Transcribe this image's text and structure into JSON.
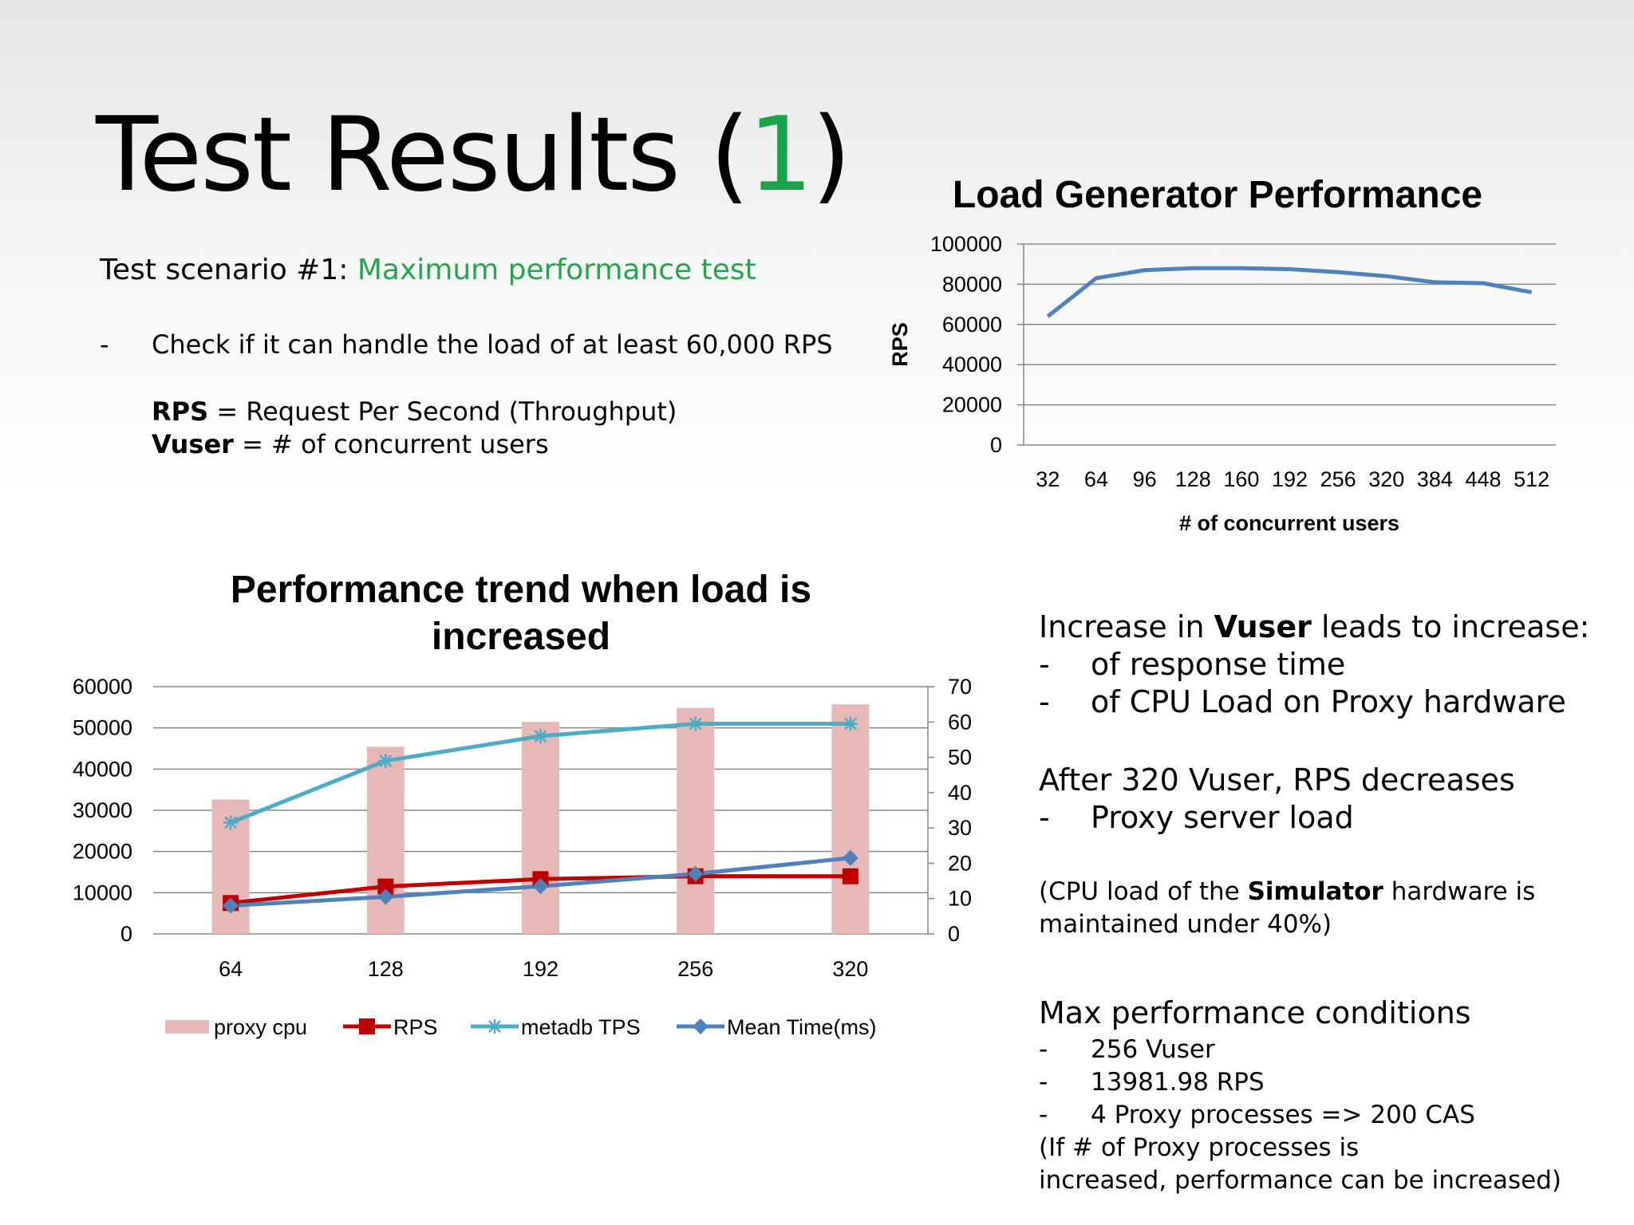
{
  "slide": {
    "title_main": "Test Results (",
    "title_num": "1",
    "title_close": ")",
    "scenario_prefix": "Test scenario #1: ",
    "scenario_name": "Maximum performance test",
    "bullet_dash": "-",
    "bullet_text": "Check if it can handle the load of at least 60,000 RPS",
    "def_rps_term": "RPS",
    "def_rps_text": " = Request Per Second (Throughput)",
    "def_vuser_term": "Vuser",
    "def_vuser_text": " = # of concurrent users",
    "notes": {
      "inc_prefix": "Increase in ",
      "inc_bold": "Vuser",
      "inc_suffix": " leads to increase:",
      "inc_item1": "of response time",
      "inc_item2": "of CPU Load on Proxy hardware",
      "after_line": "After 320 Vuser, RPS decreases",
      "after_item1": "Proxy server load",
      "cpu_prefix": "(CPU load  of the ",
      "cpu_bold": "Simulator",
      "cpu_suffix": " hardware is",
      "cpu_line2": "maintained under 40%)",
      "max_title": "Max performance conditions",
      "max_item1": "256 Vuser",
      "max_item2": "13981.98 RPS",
      "max_item3": "4 Proxy processes => 200 CAS",
      "max_line4": "(If # of Proxy processes is",
      "max_line5": "increased, performance can be increased)",
      "dash": "-"
    }
  },
  "chart_data": [
    {
      "type": "line",
      "title": "Load Generator Performance",
      "xlabel": "# of concurrent users",
      "ylabel": "RPS",
      "categories": [
        "32",
        "64",
        "96",
        "128",
        "160",
        "192",
        "256",
        "320",
        "384",
        "448",
        "512"
      ],
      "series": [
        {
          "values": [
            64000,
            83000,
            87000,
            88000,
            88000,
            87500,
            86000,
            84000,
            81000,
            80500,
            76000
          ]
        }
      ],
      "ylim": [
        0,
        100000
      ],
      "yticks": [
        "0",
        "20000",
        "40000",
        "60000",
        "80000",
        "100000"
      ],
      "grid": true,
      "color": "#4f81bd"
    },
    {
      "type": "bar",
      "title_line1": "Performance trend when load is",
      "title_line2": "increased",
      "categories": [
        "64",
        "128",
        "192",
        "256",
        "320"
      ],
      "ylim_left": [
        0,
        60000
      ],
      "ylim_right": [
        0,
        70
      ],
      "yticks_left": [
        "0",
        "10000",
        "20000",
        "30000",
        "40000",
        "50000",
        "60000"
      ],
      "yticks_right": [
        "0",
        "10",
        "20",
        "30",
        "40",
        "50",
        "60",
        "70"
      ],
      "series": [
        {
          "name": "proxy cpu",
          "kind": "bar",
          "axis": "right",
          "color": "#e6b9b8",
          "values": [
            38,
            53,
            60,
            64,
            65
          ]
        },
        {
          "name": "RPS",
          "kind": "line",
          "axis": "left",
          "color": "#c00000",
          "marker": "square",
          "values": [
            7500,
            11500,
            13300,
            14000,
            13982
          ]
        },
        {
          "name": "metadb TPS",
          "kind": "line",
          "axis": "left",
          "color": "#4bacc6",
          "marker": "star",
          "values": [
            27000,
            42000,
            48000,
            51000,
            51000
          ]
        },
        {
          "name": "Mean Time(ms)",
          "kind": "line",
          "axis": "right",
          "color": "#4f81bd",
          "marker": "diamond",
          "values": [
            8,
            10.5,
            13.5,
            17,
            21.5
          ]
        }
      ],
      "legend": "bottom"
    }
  ]
}
